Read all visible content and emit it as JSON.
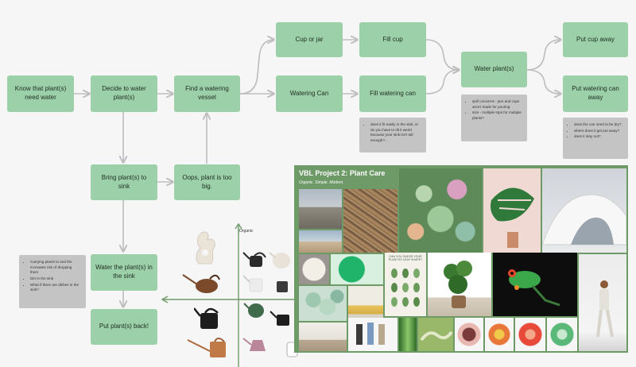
{
  "flow": {
    "nodes": {
      "know": "Know that plant(s) need water",
      "decide": "Decide to water plant(s)",
      "find": "Find a watering vessel",
      "cup_or_jar": "Cup or jar",
      "watering_can": "Watering Can",
      "fill_cup": "Fill cup",
      "fill_can": "Fill watering can",
      "water_plants": "Water plant(s)",
      "put_cup_away": "Put cup away",
      "put_can_away": "Put watering can away",
      "bring_to_sink": "Bring plant(s) to sink",
      "oops": "Oops, plant is too big.",
      "water_in_sink": "Water the plant(s) in the sink",
      "put_back": "Put plant(s) back!"
    },
    "notes": {
      "fill_can_note": [
        "does it fit easily in the sink, or do you have to tilt it weird because your sink isn't tall enough?..."
      ],
      "water_note": [
        "spill concerns - jars and cups aren't made for pouring",
        "size - multiple trips for multiple plants?"
      ],
      "put_away_note": [
        "does the can need to be dry?",
        "where does it get put away?",
        "does it stay out?"
      ],
      "sink_note": [
        "Carrying plants to and the increases risk of dropping them",
        "Dirt in the sink",
        "What if there are dishes in the sink?"
      ]
    }
  },
  "map": {
    "axis_top_label": "Organic"
  },
  "moodboard": {
    "title": "VBL Project 2: Plant Care",
    "subtitle": "Organic. Simple. Modern.",
    "chart_title": "CAN YOU GUESS YOUR PLANT BY LEAF SHAPE?"
  },
  "colors": {
    "node": "#9cd0a8",
    "note": "#c4c4c4",
    "board": "#6e9a68",
    "connector": "#bdbdbd"
  }
}
